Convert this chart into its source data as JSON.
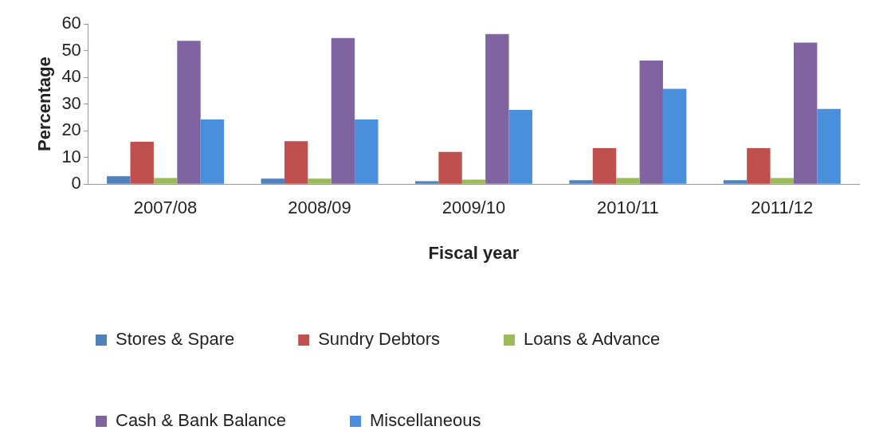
{
  "chart_data": {
    "type": "bar",
    "xlabel": "Fiscal year",
    "ylabel": "Percentage",
    "categories": [
      "2007/08",
      "2008/09",
      "2009/10",
      "2010/11",
      "2011/12"
    ],
    "series": [
      {
        "name": "Stores & Spare",
        "color": "#4f81bd",
        "values": [
          3.0,
          2.1,
          1.1,
          1.5,
          1.5
        ]
      },
      {
        "name": "Sundry Debtors",
        "color": "#c0504d",
        "values": [
          15.9,
          16.1,
          12.1,
          13.5,
          13.5
        ]
      },
      {
        "name": "Loans & Advance",
        "color": "#9bbb59",
        "values": [
          2.3,
          2.1,
          1.7,
          2.3,
          2.3
        ]
      },
      {
        "name": "Cash & Bank Balance",
        "color": "#8064a2",
        "values": [
          53.7,
          54.7,
          56.2,
          46.3,
          53.0
        ]
      },
      {
        "name": "Miscellaneous",
        "color": "#4a8fdb",
        "values": [
          24.2,
          24.2,
          27.8,
          35.7,
          28.2
        ]
      }
    ],
    "ylim": [
      0,
      60
    ],
    "yticks": [
      0,
      10,
      20,
      30,
      40,
      50,
      60
    ],
    "grid": false,
    "legend": "bottom"
  }
}
